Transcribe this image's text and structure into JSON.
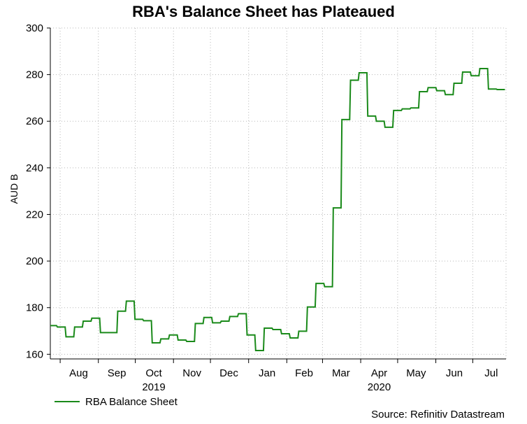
{
  "chart_data": {
    "type": "line",
    "title": "RBA's Balance Sheet has Plateaued",
    "ylabel": "AUD B",
    "xlabel": "",
    "ylim": [
      158,
      300
    ],
    "yticks": [
      160,
      180,
      200,
      220,
      240,
      260,
      280,
      300
    ],
    "xlim": [
      "2019-07-24",
      "2020-07-28"
    ],
    "month_ticks": [
      "2019-08-01",
      "2019-09-01",
      "2019-10-01",
      "2019-11-01",
      "2019-12-01",
      "2020-01-01",
      "2020-02-01",
      "2020-03-01",
      "2020-04-01",
      "2020-05-01",
      "2020-06-01",
      "2020-07-01"
    ],
    "month_labels": [
      {
        "label": "Aug",
        "date": "2019-08-16"
      },
      {
        "label": "Sep",
        "date": "2019-09-16"
      },
      {
        "label": "Oct",
        "date": "2019-10-16"
      },
      {
        "label": "Nov",
        "date": "2019-11-16"
      },
      {
        "label": "Dec",
        "date": "2019-12-16"
      },
      {
        "label": "Jan",
        "date": "2020-01-16"
      },
      {
        "label": "Feb",
        "date": "2020-02-15"
      },
      {
        "label": "Mar",
        "date": "2020-03-16"
      },
      {
        "label": "Apr",
        "date": "2020-04-16"
      },
      {
        "label": "May",
        "date": "2020-05-16"
      },
      {
        "label": "Jun",
        "date": "2020-06-16"
      },
      {
        "label": "Jul",
        "date": "2020-07-16"
      }
    ],
    "year_labels": [
      {
        "label": "2019",
        "date": "2019-10-16"
      },
      {
        "label": "2020",
        "date": "2020-04-16"
      }
    ],
    "grid": true,
    "legend_position": "bottom-left",
    "series": [
      {
        "name": "RBA Balance Sheet",
        "color": "#1a8a1a",
        "points": [
          [
            "2019-07-24",
            172.3
          ],
          [
            "2019-07-31",
            171.7
          ],
          [
            "2019-08-07",
            167.5
          ],
          [
            "2019-08-14",
            171.7
          ],
          [
            "2019-08-21",
            174.2
          ],
          [
            "2019-08-28",
            175.5
          ],
          [
            "2019-09-04",
            169.3
          ],
          [
            "2019-09-11",
            169.3
          ],
          [
            "2019-09-18",
            178.5
          ],
          [
            "2019-09-25",
            182.8
          ],
          [
            "2019-10-02",
            175.0
          ],
          [
            "2019-10-09",
            174.4
          ],
          [
            "2019-10-16",
            164.9
          ],
          [
            "2019-10-23",
            166.6
          ],
          [
            "2019-10-30",
            168.3
          ],
          [
            "2019-11-06",
            166.1
          ],
          [
            "2019-11-13",
            165.5
          ],
          [
            "2019-11-20",
            173.2
          ],
          [
            "2019-11-27",
            175.8
          ],
          [
            "2019-12-04",
            173.5
          ],
          [
            "2019-12-11",
            174.2
          ],
          [
            "2019-12-18",
            176.2
          ],
          [
            "2019-12-25",
            177.4
          ],
          [
            "2020-01-01",
            168.3
          ],
          [
            "2020-01-08",
            161.6
          ],
          [
            "2020-01-15",
            171.2
          ],
          [
            "2020-01-22",
            170.6
          ],
          [
            "2020-01-29",
            168.8
          ],
          [
            "2020-02-05",
            167.0
          ],
          [
            "2020-02-12",
            169.9
          ],
          [
            "2020-02-19",
            180.3
          ],
          [
            "2020-02-26",
            190.4
          ],
          [
            "2020-03-04",
            189.0
          ],
          [
            "2020-03-11",
            222.8
          ],
          [
            "2020-03-18",
            260.7
          ],
          [
            "2020-03-25",
            277.6
          ],
          [
            "2020-04-01",
            280.8
          ],
          [
            "2020-04-08",
            262.2
          ],
          [
            "2020-04-15",
            260.0
          ],
          [
            "2020-04-22",
            257.4
          ],
          [
            "2020-04-29",
            264.6
          ],
          [
            "2020-05-06",
            265.3
          ],
          [
            "2020-05-13",
            265.7
          ],
          [
            "2020-05-20",
            272.7
          ],
          [
            "2020-05-27",
            274.4
          ],
          [
            "2020-06-03",
            273.1
          ],
          [
            "2020-06-10",
            271.4
          ],
          [
            "2020-06-17",
            276.3
          ],
          [
            "2020-06-24",
            281.1
          ],
          [
            "2020-07-01",
            279.5
          ],
          [
            "2020-07-08",
            282.6
          ],
          [
            "2020-07-15",
            273.8
          ],
          [
            "2020-07-22",
            273.6
          ]
        ]
      }
    ],
    "source": "Source: Refinitiv Datastream"
  }
}
